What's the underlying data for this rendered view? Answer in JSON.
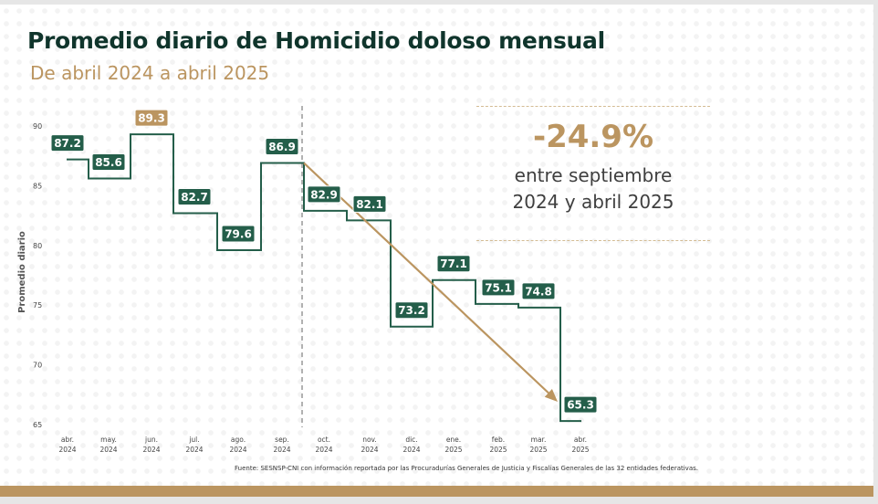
{
  "title": "Promedio diario de Homicidio doloso mensual",
  "subtitle": "De abril 2024 a abril 2025",
  "callout": {
    "value": "-24.9%",
    "line1": "entre septiembre",
    "line2": "2024 y abril 2025"
  },
  "source": "Fuente: SESNSP-CNI con información reportada por las Procuradurías Generales de Justicia y Fiscalías Generales de las 32 entidades federativas.",
  "colors": {
    "line": "#245e4a",
    "label_bg": "#245e4a",
    "highlight": "#bb9560",
    "title": "#10352c"
  },
  "chart_data": {
    "type": "line",
    "style": "step",
    "ylabel": "Promedio diario",
    "xlabel": "",
    "ylim": [
      64,
      91
    ],
    "yticks": [
      65,
      70,
      75,
      80,
      85,
      90
    ],
    "grid": false,
    "categories": [
      [
        "abr.",
        "2024"
      ],
      [
        "may.",
        "2024"
      ],
      [
        "jun.",
        "2024"
      ],
      [
        "jul.",
        "2024"
      ],
      [
        "ago.",
        "2024"
      ],
      [
        "sep.",
        "2024"
      ],
      [
        "oct.",
        "2024"
      ],
      [
        "nov.",
        "2024"
      ],
      [
        "dic.",
        "2024"
      ],
      [
        "ene.",
        "2025"
      ],
      [
        "feb.",
        "2025"
      ],
      [
        "mar.",
        "2025"
      ],
      [
        "abr.",
        "2025"
      ]
    ],
    "values": [
      87.2,
      85.6,
      89.3,
      82.7,
      79.6,
      86.9,
      82.9,
      82.1,
      73.2,
      77.1,
      75.1,
      74.8,
      65.3
    ],
    "highlight_max": "89.3",
    "annotations": {
      "divider_after": "sep. 2024",
      "trend_arrow": {
        "from": "sep. 2024",
        "to": "abr. 2025"
      }
    }
  }
}
